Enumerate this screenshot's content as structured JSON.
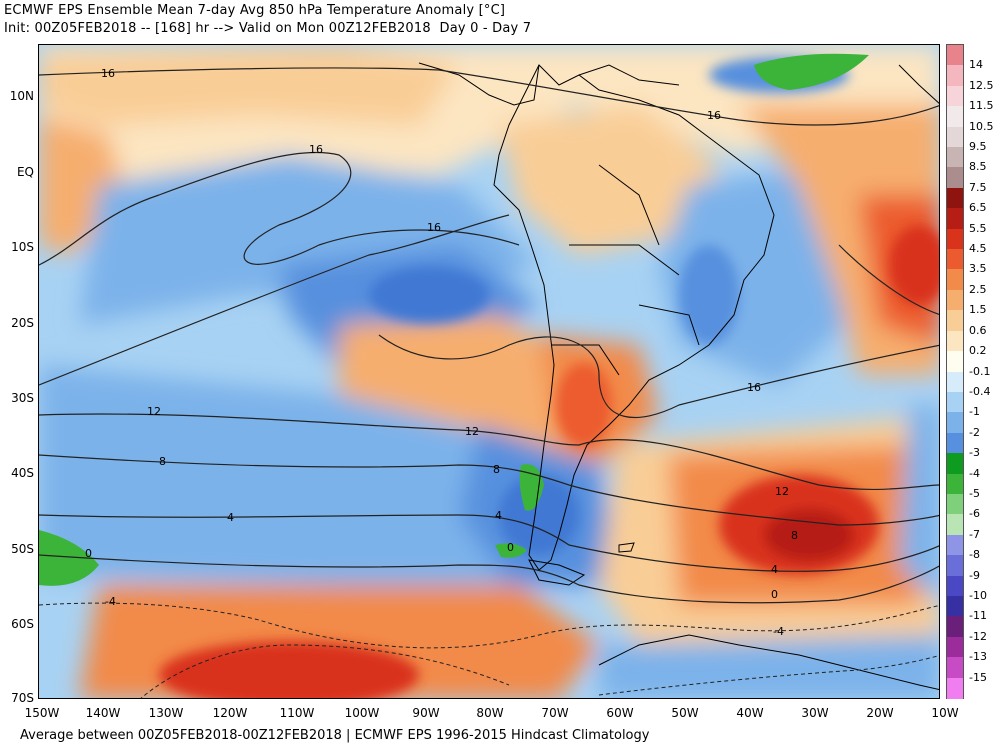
{
  "title_line1": "ECMWF EPS Ensemble Mean 7-day Avg 850 hPa Temperature Anomaly [°C]",
  "title_line2": "Init: 00Z05FEB2018 -- [168] hr --> Valid on Mon 00Z12FEB2018  Day 0 - Day 7",
  "footer": "Average between 00Z05FEB2018-00Z12FEB2018 | ECMWF EPS 1996-2015 Hindcast Climatology",
  "lat_labels": [
    "10N",
    "EQ",
    "10S",
    "20S",
    "30S",
    "40S",
    "50S",
    "60S",
    "70S"
  ],
  "lon_labels": [
    "150W",
    "140W",
    "130W",
    "120W",
    "110W",
    "100W",
    "90W",
    "80W",
    "70W",
    "60W",
    "50W",
    "40W",
    "30W",
    "20W",
    "10W"
  ],
  "colorbar": {
    "labels": [
      "14",
      "12.5",
      "11.5",
      "10.5",
      "9.5",
      "8.5",
      "7.5",
      "6.5",
      "5.5",
      "4.5",
      "3.5",
      "2.5",
      "1.5",
      "0.6",
      "0.2",
      "-0.1",
      "-0.4",
      "-1",
      "-2",
      "-3",
      "-4",
      "-5",
      "-6",
      "-7",
      "-8",
      "-9",
      "-10",
      "-11",
      "-12",
      "-13",
      "-15"
    ],
    "colors": [
      "#e8838c",
      "#f4b6bf",
      "#f7d3da",
      "#f2eaea",
      "#e3d7d7",
      "#c9b4b4",
      "#ab8d8d",
      "#8f1410",
      "#b61d14",
      "#d9331c",
      "#ec5b2f",
      "#f28a49",
      "#f6ae6e",
      "#f9cd96",
      "#fce5c1",
      "#fefdf0",
      "#d7ecfa",
      "#a8d2f3",
      "#7cb2ea",
      "#5790de",
      "#0d9c1f",
      "#3cb43a",
      "#7fd07a",
      "#b9e4b4",
      "#8f95e6",
      "#6a6ed8",
      "#4a48c4",
      "#3730a3",
      "#6a1f7a",
      "#9c2c9b",
      "#c64bc4",
      "#f07ef0"
    ]
  },
  "contour_labels": [
    "16",
    "16",
    "16",
    "16",
    "16",
    "12",
    "12",
    "12",
    "8",
    "8",
    "8",
    "4",
    "4",
    "4",
    "0",
    "0",
    "0",
    "-4",
    "-4"
  ]
}
